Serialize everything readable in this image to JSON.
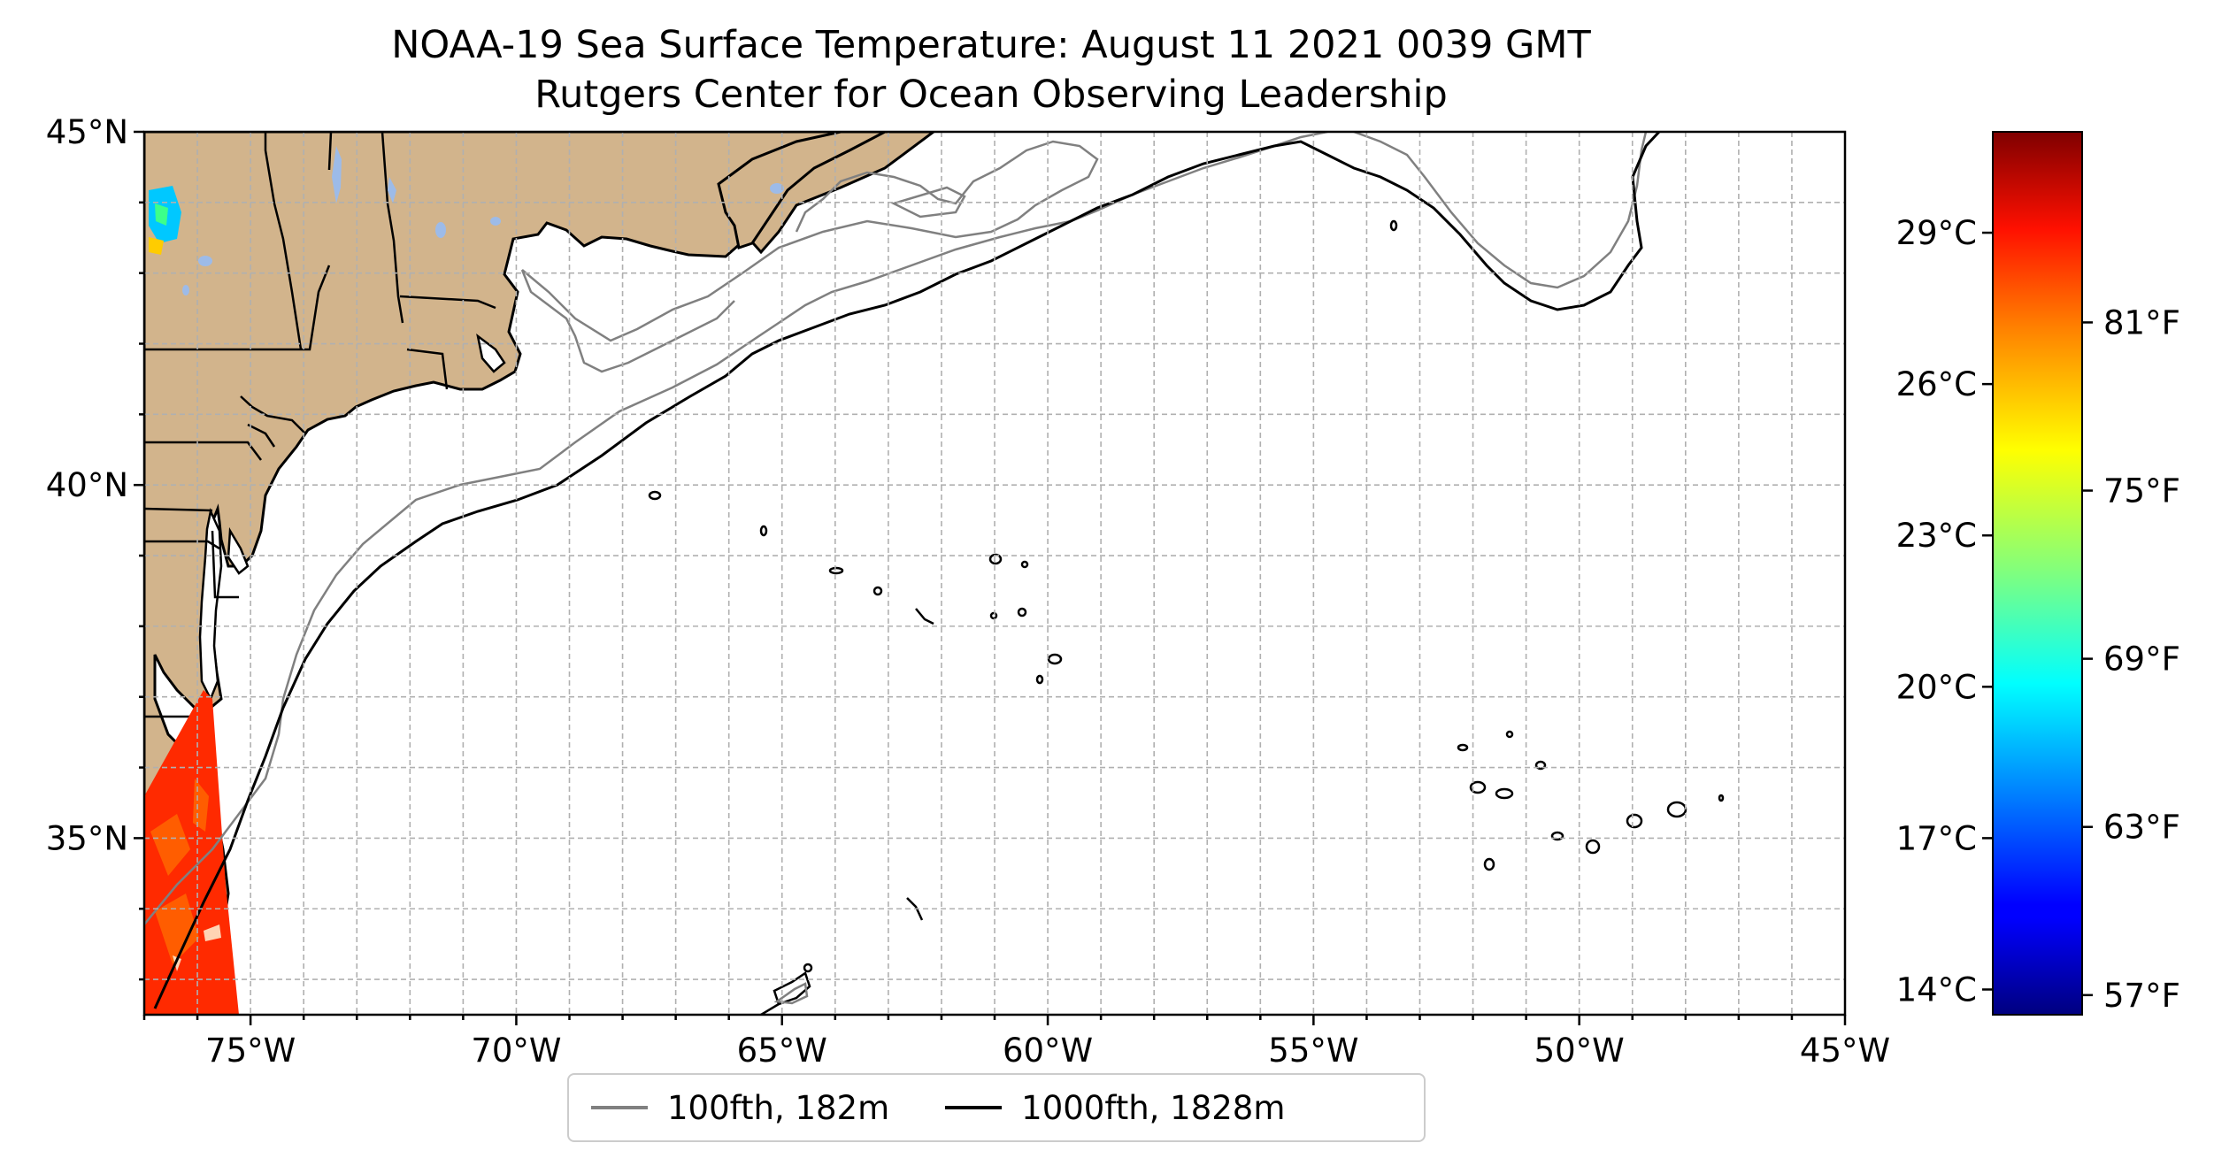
{
  "title": "NOAA-19 Sea Surface Temperature: August 11 2021 0039 GMT",
  "subtitle": "Rutgers Center for Ocean Observing Leadership",
  "map": {
    "lon_range": [
      -77,
      -45
    ],
    "lat_range": [
      32.5,
      45
    ],
    "grid_lines": true,
    "lon_ticks": [
      {
        "value": -75,
        "label": "75°W"
      },
      {
        "value": -70,
        "label": "70°W"
      },
      {
        "value": -65,
        "label": "65°W"
      },
      {
        "value": -60,
        "label": "60°W"
      },
      {
        "value": -55,
        "label": "55°W"
      },
      {
        "value": -50,
        "label": "50°W"
      },
      {
        "value": -45,
        "label": "45°W"
      }
    ],
    "lat_ticks": [
      {
        "value": 45,
        "label": "45°N"
      },
      {
        "value": 40,
        "label": "40°N"
      },
      {
        "value": 35,
        "label": "35°N"
      }
    ],
    "land_color": "#d2b48c",
    "lake_color": "#9dbbe8",
    "border_color": "#000000"
  },
  "legend": {
    "placement": "bottom-center",
    "entries": [
      {
        "label": "100fth, 182m",
        "color": "#808080"
      },
      {
        "label": "1000fth, 1828m",
        "color": "#000000"
      }
    ]
  },
  "colorbar": {
    "colormap": "jet",
    "range_c": [
      13.5,
      31
    ],
    "celsius_ticks": [
      {
        "value": 14,
        "label": "14°C"
      },
      {
        "value": 17,
        "label": "17°C"
      },
      {
        "value": 20,
        "label": "20°C"
      },
      {
        "value": 23,
        "label": "23°C"
      },
      {
        "value": 26,
        "label": "26°C"
      },
      {
        "value": 29,
        "label": "29°C"
      }
    ],
    "fahrenheit_ticks": [
      {
        "value": 57,
        "label": "57°F"
      },
      {
        "value": 63,
        "label": "63°F"
      },
      {
        "value": 69,
        "label": "69°F"
      },
      {
        "value": 75,
        "label": "75°F"
      },
      {
        "value": 81,
        "label": "81°F"
      }
    ]
  }
}
